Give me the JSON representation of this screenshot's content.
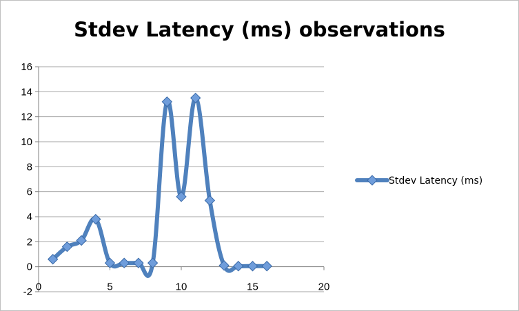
{
  "chart_data": {
    "type": "line",
    "title": "Stdev Latency (ms) observations",
    "xlabel": "",
    "ylabel": "",
    "xlim": [
      0,
      20
    ],
    "ylim": [
      -2,
      16
    ],
    "x_ticks": [
      0,
      5,
      10,
      15,
      20
    ],
    "y_ticks": [
      -2,
      0,
      2,
      4,
      6,
      8,
      10,
      12,
      14,
      16
    ],
    "grid": "horizontal",
    "legend_position": "right",
    "line_color": "#4f81bd",
    "marker_color": "#6f9ddb",
    "series": [
      {
        "name": "Stdev Latency (ms)",
        "marker": "diamond",
        "smooth": true,
        "x": [
          1,
          2,
          3,
          4,
          5,
          6,
          7,
          8,
          9,
          10,
          11,
          12,
          13,
          14,
          15,
          16
        ],
        "y": [
          0.6,
          1.6,
          2.1,
          3.8,
          0.3,
          0.3,
          0.3,
          0.3,
          13.2,
          5.6,
          13.5,
          5.3,
          0.1,
          0.05,
          0.05,
          0.05
        ]
      }
    ]
  }
}
